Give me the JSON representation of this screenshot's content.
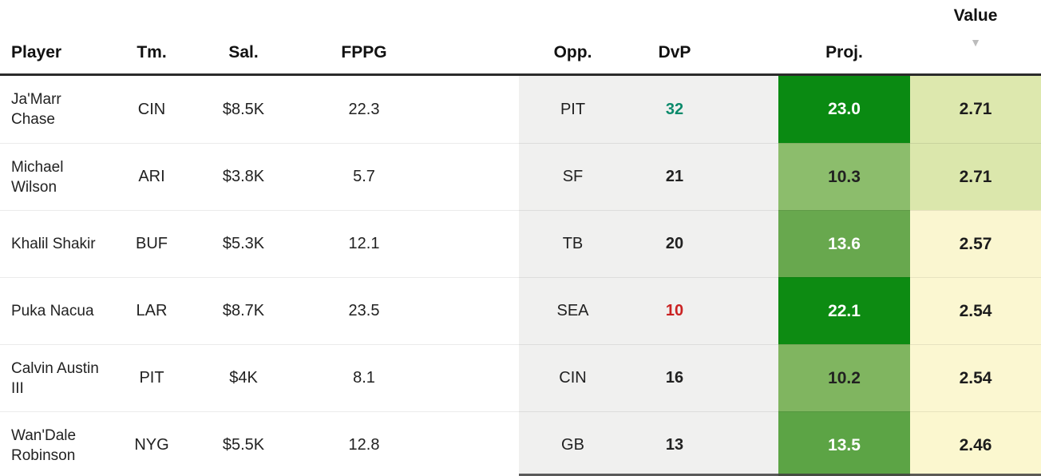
{
  "header": {
    "columns": [
      {
        "key": "player",
        "label": "Player"
      },
      {
        "key": "tm",
        "label": "Tm."
      },
      {
        "key": "sal",
        "label": "Sal."
      },
      {
        "key": "fppg",
        "label": "FPPG"
      },
      {
        "key": "opp",
        "label": "Opp."
      },
      {
        "key": "dvp",
        "label": "DvP"
      },
      {
        "key": "proj",
        "label": "Proj."
      },
      {
        "key": "value",
        "label": "Value",
        "sorted": "desc",
        "sort_icon": "▼"
      }
    ]
  },
  "colors": {
    "header_border": "#2b2b2b",
    "opp_dvp_bg": "#f0f0ef",
    "dvp_good": "#0b8a6b",
    "dvp_bad": "#ca2222",
    "dvp_neutral": "#212121",
    "proj_dark_green": "#0a8a12",
    "proj_mid_green": "#5ca445",
    "proj_light_green": "#8cbd6c",
    "value_green_bg": "#dde8ae",
    "value_yellow_bg": "#fbf7d1"
  },
  "rows": [
    {
      "player": "Ja'Marr Chase",
      "tm": "CIN",
      "sal": "$8.5K",
      "fppg": "22.3",
      "opp": "PIT",
      "dvp": "32",
      "dvp_color": "#0b8a6b",
      "proj": "23.0",
      "proj_bg": "#0a8a12",
      "proj_color": "#ffffff",
      "value": "2.71",
      "value_bg": "#dde8ae"
    },
    {
      "player": "Michael Wilson",
      "tm": "ARI",
      "sal": "$3.8K",
      "fppg": "5.7",
      "opp": "SF",
      "dvp": "21",
      "dvp_color": "#212121",
      "proj": "10.3",
      "proj_bg": "#8cbd6c",
      "proj_color": "#212121",
      "value": "2.71",
      "value_bg": "#dbe7ac"
    },
    {
      "player": "Khalil Shakir",
      "tm": "BUF",
      "sal": "$5.3K",
      "fppg": "12.1",
      "opp": "TB",
      "dvp": "20",
      "dvp_color": "#212121",
      "proj": "13.6",
      "proj_bg": "#68a84e",
      "proj_color": "#ffffff",
      "value": "2.57",
      "value_bg": "#faf6d0"
    },
    {
      "player": "Puka Nacua",
      "tm": "LAR",
      "sal": "$8.7K",
      "fppg": "23.5",
      "opp": "SEA",
      "dvp": "10",
      "dvp_color": "#ca2222",
      "proj": "22.1",
      "proj_bg": "#0d8b12",
      "proj_color": "#ffffff",
      "value": "2.54",
      "value_bg": "#fbf7d1"
    },
    {
      "player": "Calvin Austin III",
      "tm": "PIT",
      "sal": "$4K",
      "fppg": "8.1",
      "opp": "CIN",
      "dvp": "16",
      "dvp_color": "#212121",
      "proj": "10.2",
      "proj_bg": "#80b560",
      "proj_color": "#212121",
      "value": "2.54",
      "value_bg": "#fbf7d1"
    },
    {
      "player": "Wan'Dale Robinson",
      "tm": "NYG",
      "sal": "$5.5K",
      "fppg": "12.8",
      "opp": "GB",
      "dvp": "13",
      "dvp_color": "#212121",
      "proj": "13.5",
      "proj_bg": "#5ca445",
      "proj_color": "#ffffff",
      "value": "2.46",
      "value_bg": "#fbf7cf"
    }
  ]
}
